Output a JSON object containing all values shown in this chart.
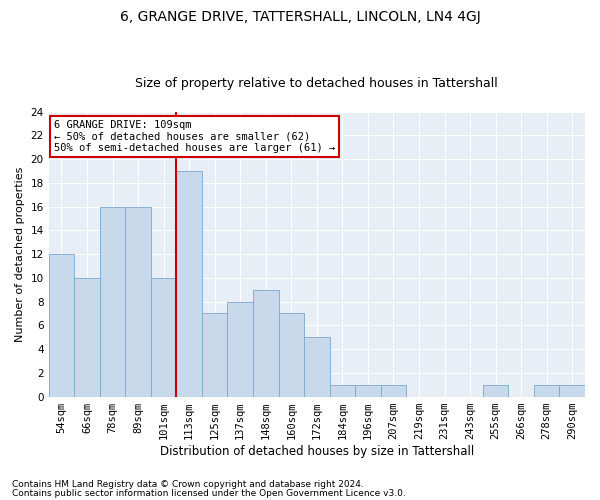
{
  "title": "6, GRANGE DRIVE, TATTERSHALL, LINCOLN, LN4 4GJ",
  "subtitle": "Size of property relative to detached houses in Tattershall",
  "xlabel": "Distribution of detached houses by size in Tattershall",
  "ylabel": "Number of detached properties",
  "categories": [
    "54sqm",
    "66sqm",
    "78sqm",
    "89sqm",
    "101sqm",
    "113sqm",
    "125sqm",
    "137sqm",
    "148sqm",
    "160sqm",
    "172sqm",
    "184sqm",
    "196sqm",
    "207sqm",
    "219sqm",
    "231sqm",
    "243sqm",
    "255sqm",
    "266sqm",
    "278sqm",
    "290sqm"
  ],
  "values": [
    12,
    10,
    16,
    16,
    10,
    19,
    7,
    8,
    9,
    7,
    5,
    1,
    1,
    1,
    0,
    0,
    0,
    1,
    0,
    1,
    1
  ],
  "bar_color": "#c9d9ec",
  "bar_edgecolor": "#7aa8cc",
  "background_color": "#e8eef5",
  "grid_color": "#ffffff",
  "property_line_index": 5,
  "property_line_color": "#cc0000",
  "annotation_text": "6 GRANGE DRIVE: 109sqm\n← 50% of detached houses are smaller (62)\n50% of semi-detached houses are larger (61) →",
  "annotation_box_edgecolor": "#cc0000",
  "ylim": [
    0,
    24
  ],
  "yticks": [
    0,
    2,
    4,
    6,
    8,
    10,
    12,
    14,
    16,
    18,
    20,
    22,
    24
  ],
  "footnote1": "Contains HM Land Registry data © Crown copyright and database right 2024.",
  "footnote2": "Contains public sector information licensed under the Open Government Licence v3.0.",
  "title_fontsize": 10,
  "subtitle_fontsize": 9,
  "xlabel_fontsize": 8.5,
  "ylabel_fontsize": 8,
  "tick_fontsize": 7.5,
  "annotation_fontsize": 7.5,
  "footnote_fontsize": 6.5
}
